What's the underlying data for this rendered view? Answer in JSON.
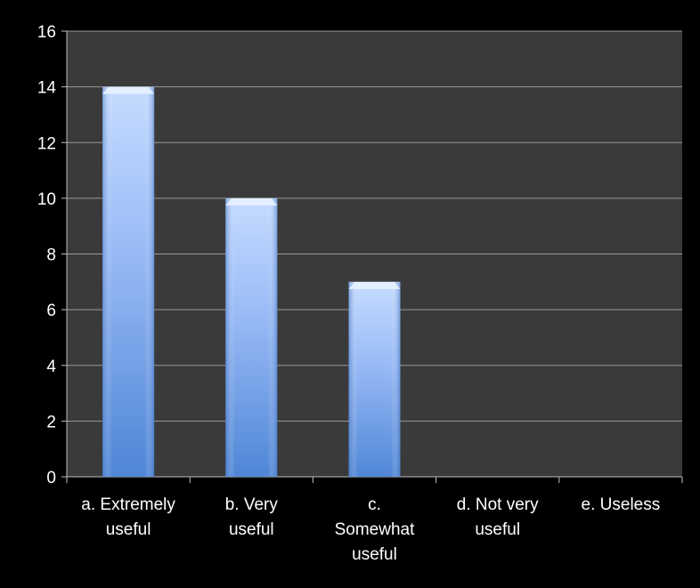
{
  "chart_data": {
    "type": "bar",
    "title": "",
    "xlabel": "",
    "ylabel": "",
    "ylim": [
      0,
      16
    ],
    "yticks": [
      0,
      2,
      4,
      6,
      8,
      10,
      12,
      14,
      16
    ],
    "grid": true,
    "categories": [
      [
        "a. Extremely",
        "useful"
      ],
      [
        "b. Very",
        "useful"
      ],
      [
        "c.",
        "Somewhat",
        "useful"
      ],
      [
        "d. Not very",
        "useful"
      ],
      [
        "e. Useless"
      ]
    ],
    "values": [
      14,
      10,
      7,
      0,
      0
    ]
  },
  "colors": {
    "background": "#000000",
    "plot_area": "#3a3a3a",
    "grid": "#9a9a9a",
    "axis": "#bfbfbf",
    "text": "#ffffff",
    "bar_light": "#b8d3ff",
    "bar_mid": "#8fb4f4",
    "bar_dark": "#4a7fd0"
  }
}
